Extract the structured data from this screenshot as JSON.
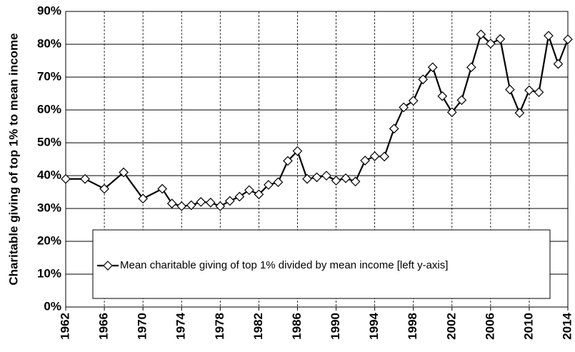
{
  "chart_data": {
    "type": "line",
    "y_label": "Charitable giving of top 1% to mean income",
    "x": [
      1962,
      1964,
      1966,
      1968,
      1970,
      1972,
      1973,
      1974,
      1975,
      1976,
      1977,
      1978,
      1979,
      1980,
      1981,
      1982,
      1983,
      1984,
      1985,
      1986,
      1987,
      1988,
      1989,
      1990,
      1991,
      1992,
      1993,
      1994,
      1995,
      1996,
      1997,
      1998,
      1999,
      2000,
      2001,
      2002,
      2003,
      2004,
      2005,
      2006,
      2007,
      2008,
      2009,
      2010,
      2011,
      2012,
      2013,
      2014
    ],
    "series": [
      {
        "name": "Mean charitable giving of top 1% divided by mean income [left y-axis]",
        "color": "#000000",
        "values": [
          39,
          39,
          36,
          41,
          33,
          36,
          31.5,
          30.7,
          31,
          32,
          31.8,
          30.7,
          32.3,
          33.6,
          35.6,
          34.3,
          37.2,
          38,
          44.5,
          47.5,
          39,
          39.5,
          40,
          38.5,
          39.2,
          38.2,
          44.6,
          45.9,
          45.8,
          54.3,
          60.8,
          62.8,
          69.3,
          73,
          64.2,
          59.3,
          63,
          73,
          83,
          80.2,
          81.6,
          66.2,
          59.1,
          66,
          65.4,
          82.6,
          74,
          81.5
        ]
      }
    ],
    "xlim": [
      1962,
      2014
    ],
    "xticks": [
      1962,
      1966,
      1970,
      1974,
      1978,
      1982,
      1986,
      1990,
      1994,
      1998,
      2002,
      2006,
      2010,
      2014
    ],
    "ylim": [
      0,
      90
    ],
    "yticks": [
      {
        "value": 0,
        "label": "0%"
      },
      {
        "value": 10,
        "label": "10%"
      },
      {
        "value": 20,
        "label": "20%"
      },
      {
        "value": 30,
        "label": "30%"
      },
      {
        "value": 40,
        "label": "40%"
      },
      {
        "value": 50,
        "label": "50%"
      },
      {
        "value": 60,
        "label": "60%"
      },
      {
        "value": 70,
        "label": "70%"
      },
      {
        "value": 80,
        "label": "80%"
      },
      {
        "value": 90,
        "label": "90%"
      }
    ],
    "grid": true
  }
}
